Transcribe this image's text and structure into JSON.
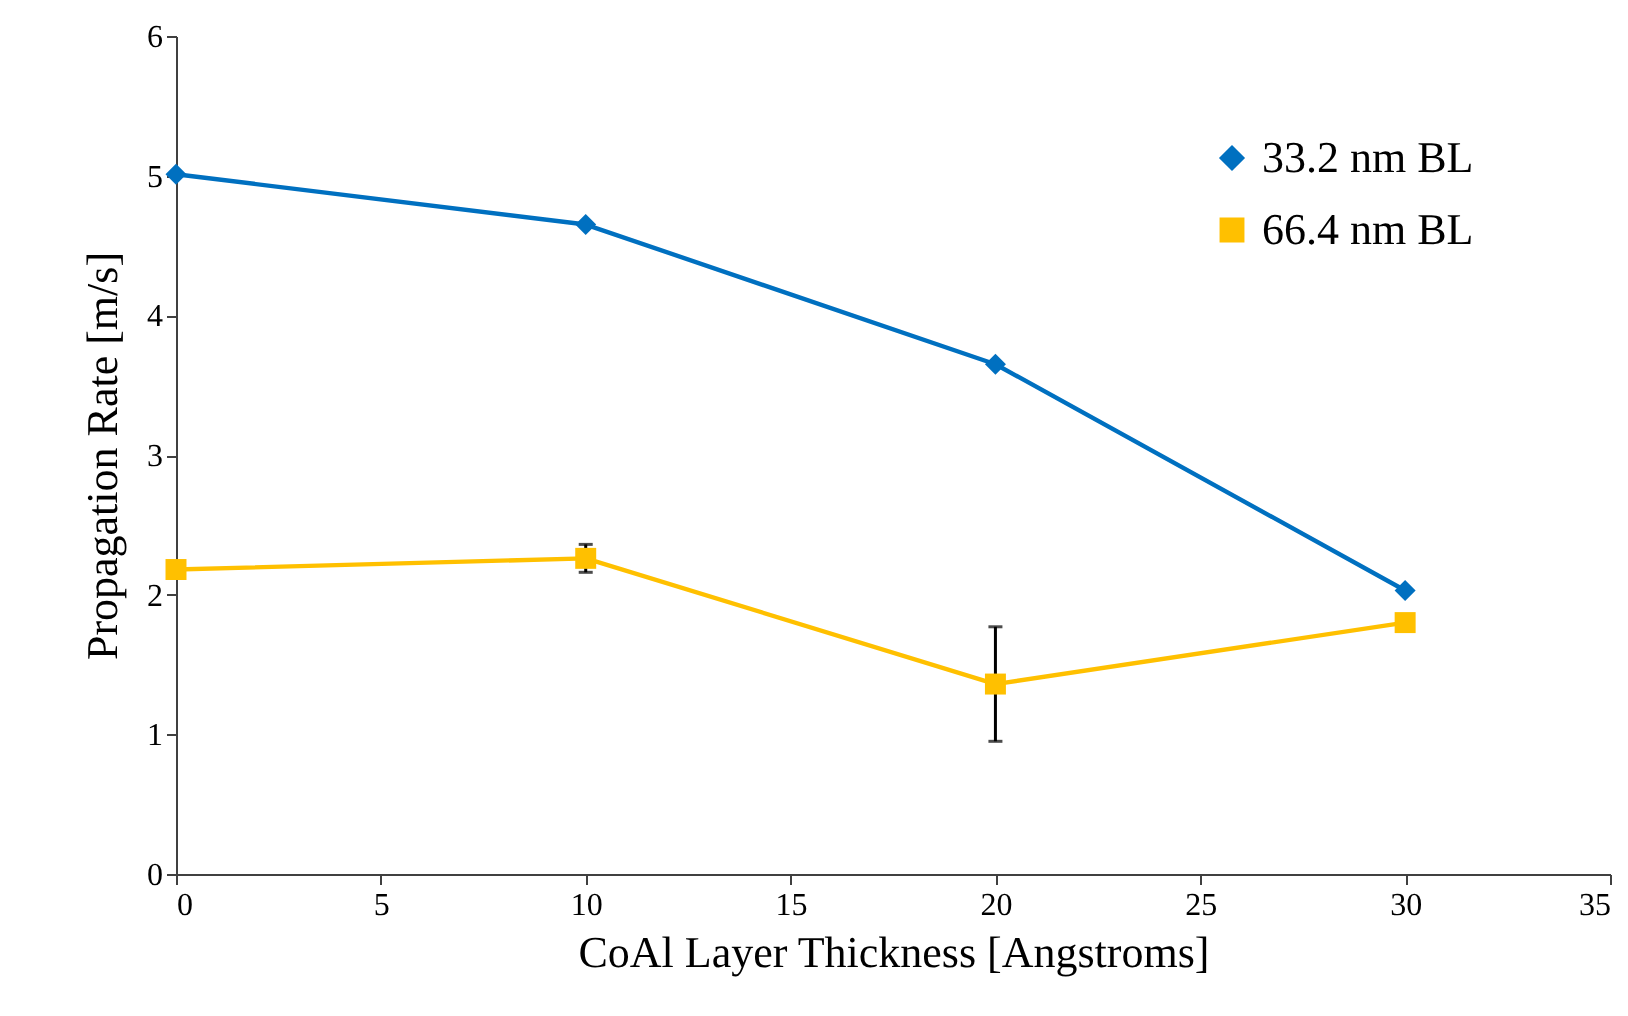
{
  "chart_data": {
    "type": "line",
    "xlabel": "CoAl Layer Thickness [Angstroms]",
    "ylabel": "Propagation Rate [m/s]",
    "x": [
      0,
      10,
      20,
      30
    ],
    "series": [
      {
        "name": "33.2 nm BL",
        "color": "#0070c0",
        "marker": "diamond",
        "values": [
          5.01,
          4.65,
          3.65,
          2.03
        ]
      },
      {
        "name": "66.4 nm BL",
        "color": "#ffc000",
        "marker": "square",
        "values": [
          2.18,
          2.26,
          1.36,
          1.8
        ],
        "errors": [
          null,
          0.1,
          [
            0.95,
            1.77
          ],
          null
        ]
      }
    ],
    "xlim": [
      0,
      35
    ],
    "xticks": [
      0,
      5,
      10,
      15,
      20,
      25,
      30,
      35
    ],
    "ylim": [
      0,
      6
    ],
    "yticks": [
      0,
      1,
      2,
      3,
      4,
      5,
      6
    ],
    "grid": false,
    "legend": "top right",
    "line_style": "solid"
  }
}
